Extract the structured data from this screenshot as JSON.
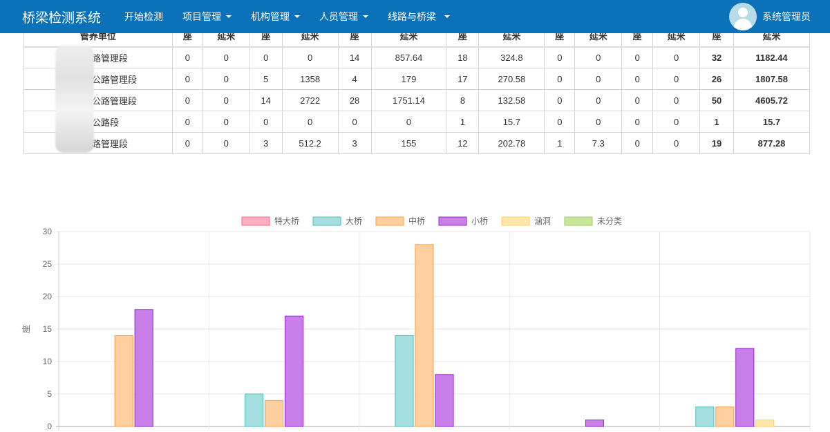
{
  "navbar": {
    "brand": "桥梁检测系统",
    "items": [
      {
        "label": "开始检测",
        "dropdown": false
      },
      {
        "label": "项目管理",
        "dropdown": true
      },
      {
        "label": "机构管理",
        "dropdown": true
      },
      {
        "label": "人员管理",
        "dropdown": true
      },
      {
        "label": "线路与桥梁",
        "dropdown": true
      }
    ],
    "user": "系统管理员"
  },
  "table": {
    "headers": [
      "管养单位",
      "座",
      "延米",
      "座",
      "延米",
      "座",
      "延米",
      "座",
      "延米",
      "座",
      "延米",
      "座",
      "延米",
      "座",
      "延米"
    ],
    "rows": [
      [
        "路管理段",
        "0",
        "0",
        "0",
        "0",
        "14",
        "857.64",
        "18",
        "324.8",
        "0",
        "0",
        "0",
        "0",
        "32",
        "1182.44"
      ],
      [
        "公路管理段",
        "0",
        "0",
        "5",
        "1358",
        "4",
        "179",
        "17",
        "270.58",
        "0",
        "0",
        "0",
        "0",
        "26",
        "1807.58"
      ],
      [
        "公路管理段",
        "0",
        "0",
        "14",
        "2722",
        "28",
        "1751.14",
        "8",
        "132.58",
        "0",
        "0",
        "0",
        "0",
        "50",
        "4605.72"
      ],
      [
        "公路段",
        "0",
        "0",
        "0",
        "0",
        "0",
        "0",
        "1",
        "15.7",
        "0",
        "0",
        "0",
        "0",
        "1",
        "15.7"
      ],
      [
        "路管理段",
        "0",
        "0",
        "3",
        "512.2",
        "3",
        "155",
        "12",
        "202.78",
        "1",
        "7.3",
        "0",
        "0",
        "19",
        "877.28"
      ]
    ]
  },
  "chart_data": {
    "type": "bar",
    "ylabel": "座",
    "ylim": [
      0,
      30
    ],
    "yticks": [
      0,
      5,
      10,
      15,
      20,
      25,
      30
    ],
    "grid": true,
    "legend": "top",
    "categories": [
      "",
      "",
      "",
      "",
      ""
    ],
    "series": [
      {
        "name": "特大桥",
        "values": [
          0,
          0,
          0,
          0,
          0
        ],
        "fill": "#ffb1c1",
        "stroke": "#ff6384"
      },
      {
        "name": "大桥",
        "values": [
          0,
          5,
          14,
          0,
          3
        ],
        "fill": "#a5dfdf",
        "stroke": "#4bc0c0"
      },
      {
        "name": "中桥",
        "values": [
          14,
          4,
          28,
          0,
          3
        ],
        "fill": "#ffcf9f",
        "stroke": "#ff9f40"
      },
      {
        "name": "小桥",
        "values": [
          18,
          17,
          8,
          1,
          12
        ],
        "fill": "#c97fe8",
        "stroke": "#9b1fd1"
      },
      {
        "name": "涵洞",
        "values": [
          0,
          0,
          0,
          0,
          1
        ],
        "fill": "#ffe6aa",
        "stroke": "#ffcd56"
      },
      {
        "name": "未分类",
        "values": [
          0,
          0,
          0,
          0,
          0
        ],
        "fill": "#c9e69a",
        "stroke": "#9ccc65"
      }
    ]
  }
}
